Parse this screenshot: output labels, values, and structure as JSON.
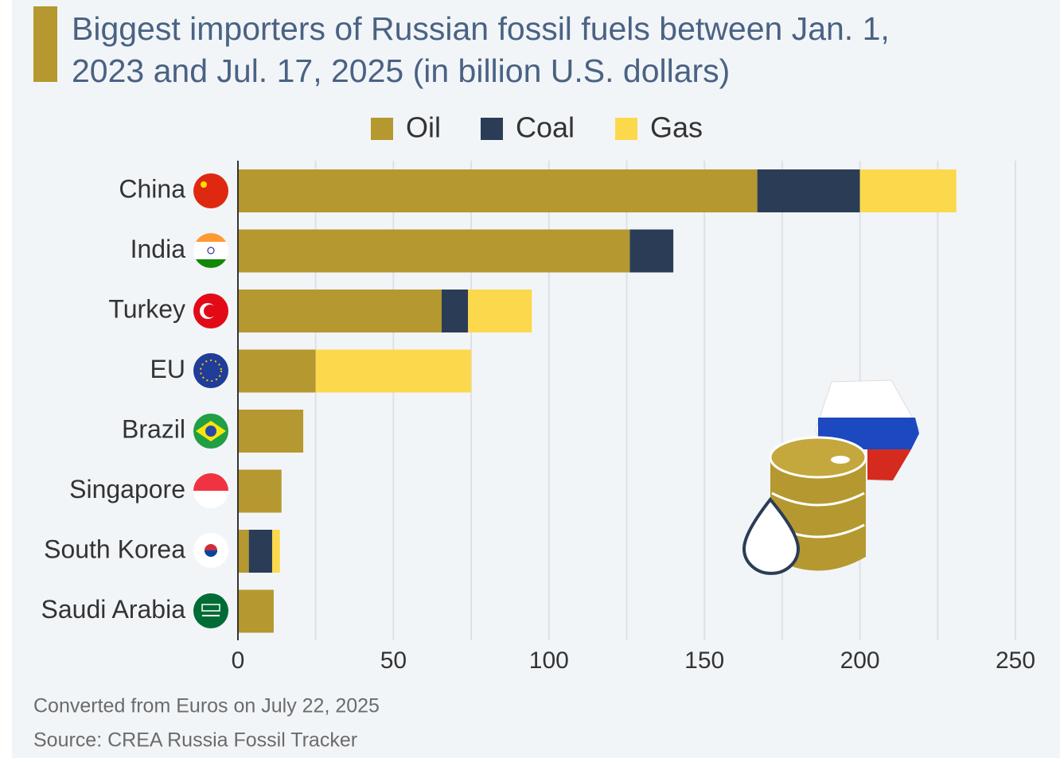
{
  "chart_data": {
    "type": "stacked-barh",
    "title": "Biggest importers of Russian fossil fuels between Jan. 1, 2023 and Jul. 17, 2025 (in billion U.S. dollars)",
    "categories": [
      "China",
      "India",
      "Turkey",
      "EU",
      "Brazil",
      "Singapore",
      "South Korea",
      "Saudi Arabia"
    ],
    "series": [
      {
        "name": "Oil",
        "color": "#b5982f",
        "values": [
          167,
          126,
          65.5,
          25,
          21,
          14,
          3.5,
          11.5
        ]
      },
      {
        "name": "Coal",
        "color": "#2b3d56",
        "values": [
          33,
          14,
          8.5,
          0,
          0,
          0,
          7.5,
          0
        ]
      },
      {
        "name": "Gas",
        "color": "#fcd94c",
        "values": [
          31,
          0,
          20.5,
          50,
          0,
          0,
          2.5,
          0
        ]
      }
    ],
    "xlim": [
      0,
      250
    ],
    "xticks": [
      0,
      50,
      100,
      150,
      200,
      250
    ],
    "minor_xticks": [
      25,
      75,
      125,
      175,
      225
    ],
    "grid": true,
    "notes": [
      "Converted from Euros on July 22, 2025",
      "Source: CREA Russia Fossil Tracker"
    ]
  }
}
